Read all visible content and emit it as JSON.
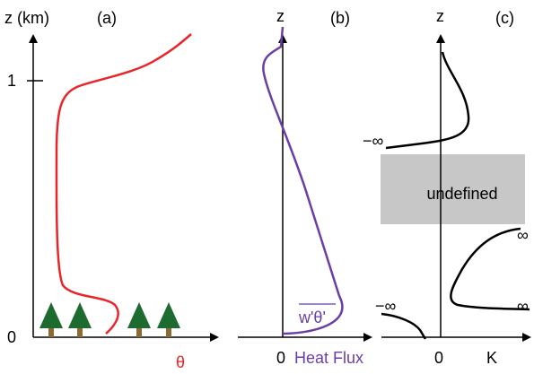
{
  "panel_a": {
    "y_axis_label": "z (km)",
    "panel_label": "(a)",
    "tick_top": "1",
    "tick_bottom": "0",
    "x_axis_label": "θ"
  },
  "panel_b": {
    "y_axis_label": "z",
    "panel_label": "(b)",
    "curve_label": "w'θ'",
    "zero_label": "0",
    "x_axis_label": "Heat Flux"
  },
  "panel_c": {
    "y_axis_label": "z",
    "panel_label": "(c)",
    "upper_neg_inf": "−∞",
    "box_label": "undefined",
    "upper_inf": "∞",
    "lower_neg_inf": "−∞",
    "lower_inf": "∞",
    "zero_label": "0",
    "x_axis_label": "K"
  }
}
